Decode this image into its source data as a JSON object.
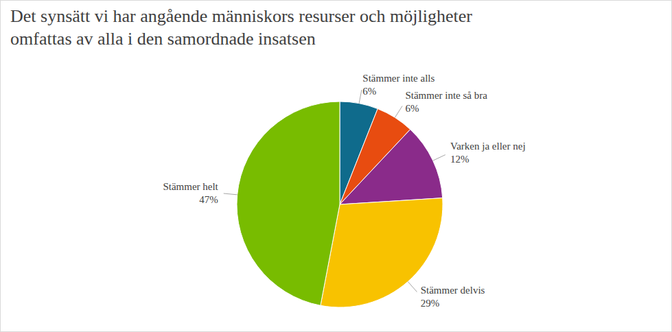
{
  "chart_data": {
    "type": "pie",
    "title": "Det synsätt vi har angående människors resurser och möjligheter omfattas av alla i den samordnade insatsen",
    "categories": [
      "Stämmer inte alls",
      "Stämmer inte så bra",
      "Varken ja eller nej",
      "Stämmer delvis",
      "Stämmer helt"
    ],
    "values": [
      6,
      6,
      12,
      29,
      47
    ],
    "value_labels": [
      "6%",
      "6%",
      "12%",
      "29%",
      "47%"
    ],
    "colors": [
      "#0f6b8c",
      "#e84c10",
      "#8a2b8a",
      "#f8c200",
      "#78bc00"
    ],
    "data_labels": true
  }
}
